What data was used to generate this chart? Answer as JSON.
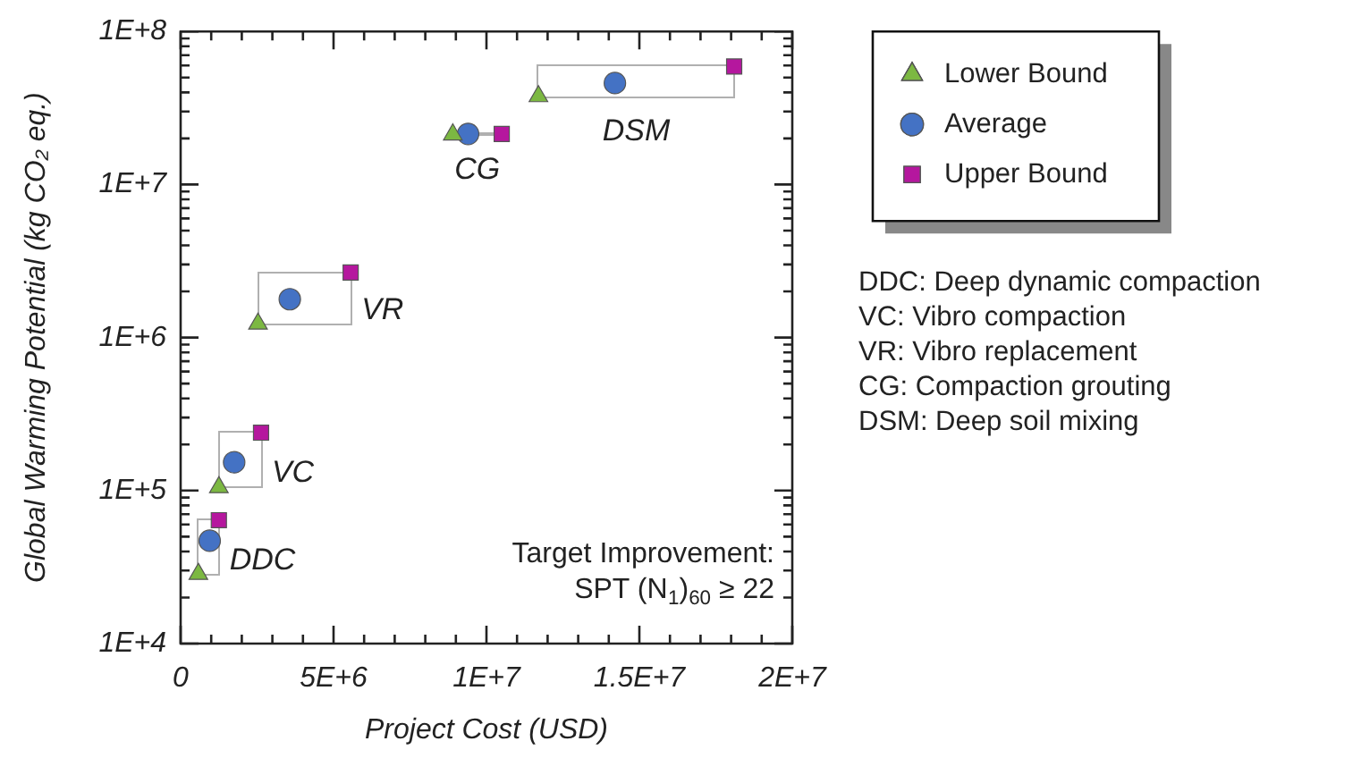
{
  "chart_data": {
    "type": "scatter",
    "xlabel": "Project Cost (USD)",
    "ylabel": "Global Warming Potential (kg CO₂ eq.)",
    "log": "y",
    "xlim": [
      0,
      20000000
    ],
    "xticks": [
      {
        "value": 0,
        "label": "0"
      },
      {
        "value": 1000000,
        "label": null
      },
      {
        "value": 2000000,
        "label": null
      },
      {
        "value": 3000000,
        "label": null
      },
      {
        "value": 4000000,
        "label": null
      },
      {
        "value": 5000000,
        "label": "5E+6"
      },
      {
        "value": 6000000,
        "label": null
      },
      {
        "value": 7000000,
        "label": null
      },
      {
        "value": 8000000,
        "label": null
      },
      {
        "value": 9000000,
        "label": null
      },
      {
        "value": 10000000,
        "label": "1E+7"
      },
      {
        "value": 11000000,
        "label": null
      },
      {
        "value": 12000000,
        "label": null
      },
      {
        "value": 13000000,
        "label": null
      },
      {
        "value": 14000000,
        "label": null
      },
      {
        "value": 15000000,
        "label": "1.5E+7"
      },
      {
        "value": 16000000,
        "label": null
      },
      {
        "value": 17000000,
        "label": null
      },
      {
        "value": 18000000,
        "label": null
      },
      {
        "value": 19000000,
        "label": null
      },
      {
        "value": 20000000,
        "label": "2E+7"
      }
    ],
    "ylim": [
      10000,
      100000000
    ],
    "yticks": [
      {
        "value": 10000,
        "label": "1E+4"
      },
      {
        "value": 20000,
        "label": null
      },
      {
        "value": 30000,
        "label": null
      },
      {
        "value": 40000,
        "label": null
      },
      {
        "value": 50000,
        "label": null
      },
      {
        "value": 60000,
        "label": null
      },
      {
        "value": 70000,
        "label": null
      },
      {
        "value": 80000,
        "label": null
      },
      {
        "value": 90000,
        "label": null
      },
      {
        "value": 100000,
        "label": "1E+5"
      },
      {
        "value": 200000,
        "label": null
      },
      {
        "value": 300000,
        "label": null
      },
      {
        "value": 400000,
        "label": null
      },
      {
        "value": 500000,
        "label": null
      },
      {
        "value": 600000,
        "label": null
      },
      {
        "value": 700000,
        "label": null
      },
      {
        "value": 800000,
        "label": null
      },
      {
        "value": 900000,
        "label": null
      },
      {
        "value": 1000000,
        "label": "1E+6"
      },
      {
        "value": 2000000,
        "label": null
      },
      {
        "value": 3000000,
        "label": null
      },
      {
        "value": 4000000,
        "label": null
      },
      {
        "value": 5000000,
        "label": null
      },
      {
        "value": 6000000,
        "label": null
      },
      {
        "value": 7000000,
        "label": null
      },
      {
        "value": 8000000,
        "label": null
      },
      {
        "value": 9000000,
        "label": null
      },
      {
        "value": 10000000,
        "label": "1E+7"
      },
      {
        "value": 20000000,
        "label": null
      },
      {
        "value": 30000000,
        "label": null
      },
      {
        "value": 40000000,
        "label": null
      },
      {
        "value": 50000000,
        "label": null
      },
      {
        "value": 60000000,
        "label": null
      },
      {
        "value": 70000000,
        "label": null
      },
      {
        "value": 80000000,
        "label": null
      },
      {
        "value": 90000000,
        "label": null
      },
      {
        "value": 100000000,
        "label": "1E+8"
      }
    ],
    "grid": false,
    "legend": "top right",
    "series": [
      {
        "name": "Lower Bound",
        "color": "#7cb842",
        "marker": "triangle",
        "x": [
          580000,
          1250000,
          2530000,
          8900000,
          11700000
        ],
        "values": [
          28500,
          105000,
          1230000,
          21200000,
          37700000
        ]
      },
      {
        "name": "Average",
        "color": "#4472c4",
        "marker": "circle",
        "x": [
          950000,
          1750000,
          3570000,
          9400000,
          14200000
        ],
        "values": [
          47000,
          153000,
          1780000,
          21400000,
          46000000
        ]
      },
      {
        "name": "Upper Bound",
        "color": "#b5179e",
        "marker": "square",
        "x": [
          1250000,
          2630000,
          5560000,
          10500000,
          18100000
        ],
        "values": [
          64000,
          239000,
          2660000,
          21400000,
          59000000
        ]
      }
    ],
    "annotations": [
      "DDC",
      "VC",
      "VR",
      "CG",
      "DSM",
      "Target Improvement:",
      "SPT (N$_{1}$)$_{60}$ ≥ 22",
      "DDC: Deep dynamic compaction",
      "VC: Vibro compaction",
      "VR: Vibro replacement",
      "CG: Compaction grouting",
      "DSM: Deep soil mixing"
    ]
  }
}
